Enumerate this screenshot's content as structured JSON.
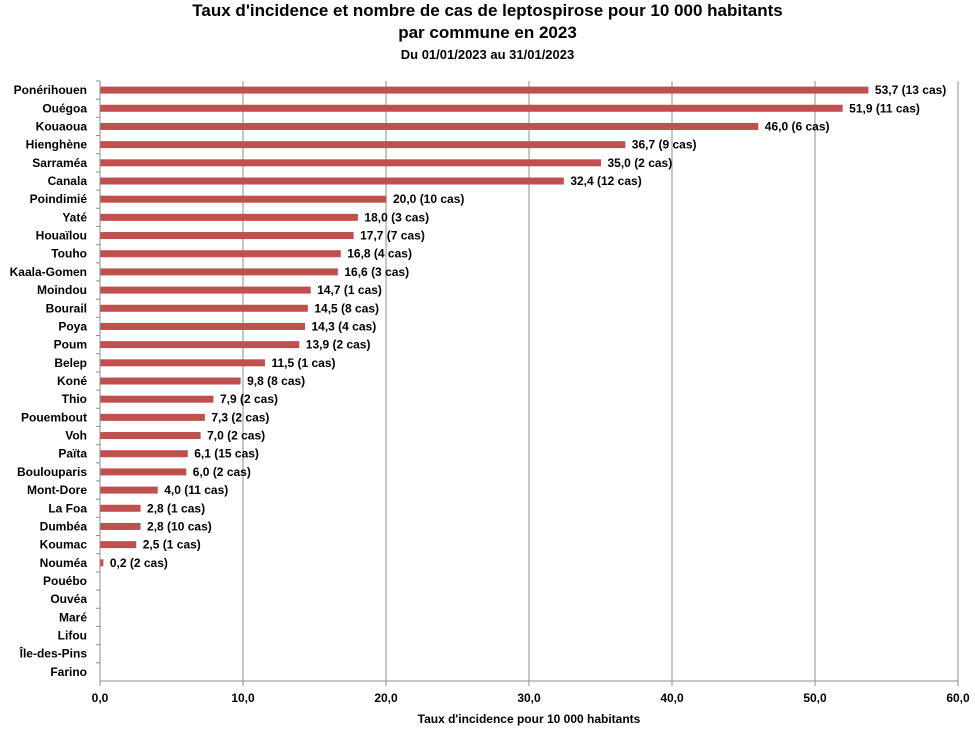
{
  "chart_data": {
    "type": "bar",
    "orientation": "horizontal",
    "title_line1": "Taux d'incidence et nombre de cas de leptospirose  pour 10 000 habitants",
    "title_line2": "par commune  en 2023",
    "subtitle": "Du 01/01/2023 au 31/01/2023",
    "xlabel": "Taux d'incidence pour 10 000 habitants",
    "ylabel": "",
    "xlim": [
      0,
      60
    ],
    "x_ticks": [
      "0,0",
      "10,0",
      "20,0",
      "30,0",
      "40,0",
      "50,0",
      "60,0"
    ],
    "grid": "vertical",
    "bar_color": "#c0504d",
    "categories": [
      "Ponérihouen",
      "Ouégoa",
      "Kouaoua",
      "Hienghène",
      "Sarraméa",
      "Canala",
      "Poindimié",
      "Yaté",
      "Houaïlou",
      "Touho",
      "Kaala-Gomen",
      "Moindou",
      "Bourail",
      "Poya",
      "Poum",
      "Belep",
      "Koné",
      "Thio",
      "Pouembout",
      "Voh",
      "Païta",
      "Boulouparis",
      "Mont-Dore",
      "La Foa",
      "Dumbéa",
      "Koumac",
      "Nouméa",
      "Pouébo",
      "Ouvéa",
      "Maré",
      "Lifou",
      "Île-des-Pins",
      "Farino"
    ],
    "values": [
      53.7,
      51.9,
      46.0,
      36.7,
      35.0,
      32.4,
      20.0,
      18.0,
      17.7,
      16.8,
      16.6,
      14.7,
      14.5,
      14.3,
      13.9,
      11.5,
      9.8,
      7.9,
      7.3,
      7.0,
      6.1,
      6.0,
      4.0,
      2.8,
      2.8,
      2.5,
      0.2,
      0,
      0,
      0,
      0,
      0,
      0
    ],
    "data_labels": [
      "53,7 (13 cas)",
      "51,9 (11 cas)",
      "46,0 (6 cas)",
      "36,7 (9 cas)",
      "35,0 (2 cas)",
      "32,4 (12 cas)",
      "20,0 (10 cas)",
      "18,0 (3 cas)",
      "17,7 (7 cas)",
      "16,8 (4 cas)",
      "16,6 (3 cas)",
      "14,7 (1 cas)",
      "14,5 (8 cas)",
      "14,3 (4 cas)",
      "13,9 (2 cas)",
      "11,5 (1 cas)",
      "9,8 (8 cas)",
      "7,9 (2 cas)",
      "7,3 (2 cas)",
      "7,0 (2 cas)",
      "6,1 (15 cas)",
      "6,0 (2 cas)",
      "4,0 (11 cas)",
      "2,8 (1 cas)",
      "2,8 (10 cas)",
      "2,5 (1 cas)",
      "0,2 (2 cas)",
      "",
      "",
      "",
      "",
      "",
      ""
    ]
  }
}
